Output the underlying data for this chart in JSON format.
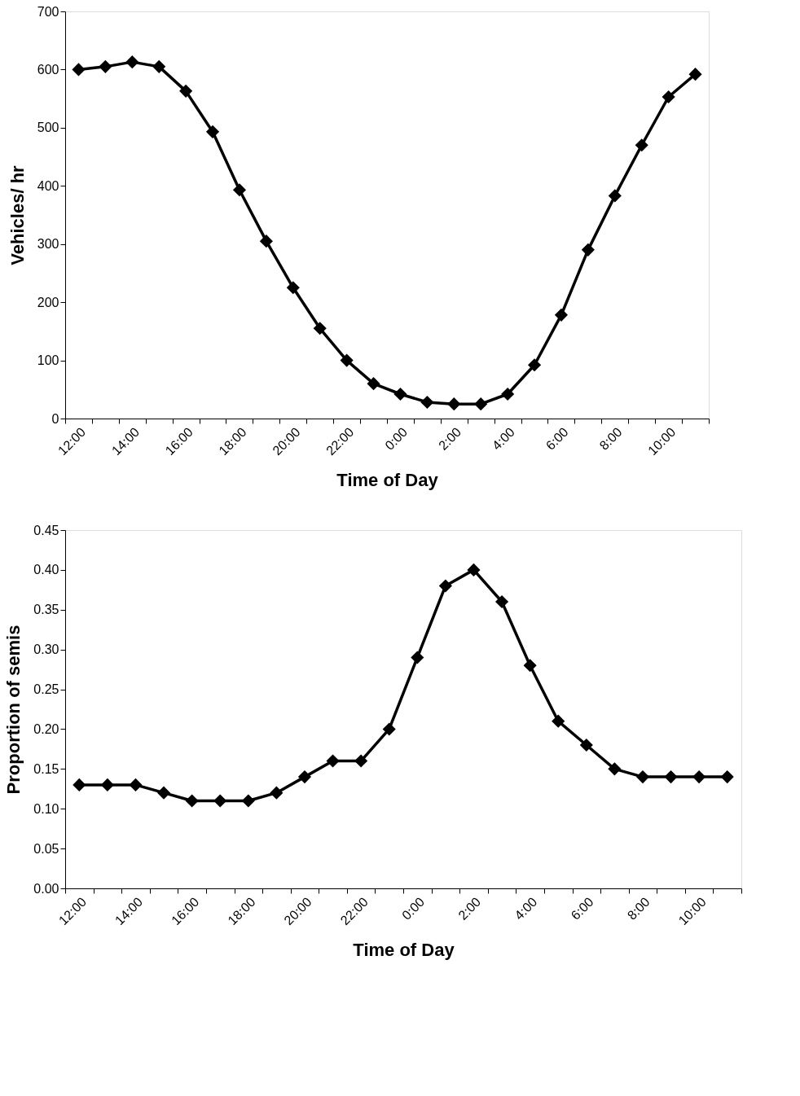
{
  "chart_data": [
    {
      "type": "line",
      "xlabel": "Time of Day",
      "ylabel": "Vehicles/ hr",
      "categories": [
        "12:00",
        null,
        "14:00",
        null,
        "16:00",
        null,
        "18:00",
        null,
        "20:00",
        null,
        "22:00",
        null,
        "0:00",
        null,
        "2:00",
        null,
        "4:00",
        null,
        "6:00",
        null,
        "8:00",
        null,
        "10:00",
        null
      ],
      "series": [
        {
          "color": "#000000",
          "values": [
            600,
            605,
            613,
            605,
            563,
            493,
            393,
            305,
            225,
            155,
            100,
            60,
            42,
            28,
            25,
            25,
            42,
            92,
            178,
            290,
            383,
            470,
            553,
            592
          ]
        }
      ],
      "ylim": [
        0,
        700
      ],
      "yticks": [
        0,
        100,
        200,
        300,
        400,
        500,
        600,
        700
      ],
      "grid": false,
      "marker": "diamond",
      "line_style": "solid"
    },
    {
      "type": "line",
      "xlabel": "Time of Day",
      "ylabel": "Proportion of semis",
      "categories": [
        "12:00",
        null,
        "14:00",
        null,
        "16:00",
        null,
        "18:00",
        null,
        "20:00",
        null,
        "22:00",
        null,
        "0:00",
        null,
        "2:00",
        null,
        "4:00",
        null,
        "6:00",
        null,
        "8:00",
        null,
        "10:00",
        null
      ],
      "series": [
        {
          "color": "#000000",
          "values": [
            0.13,
            0.13,
            0.13,
            0.12,
            0.11,
            0.11,
            0.11,
            0.12,
            0.14,
            0.16,
            0.16,
            0.2,
            0.29,
            0.38,
            0.4,
            0.36,
            0.28,
            0.21,
            0.18,
            0.15,
            0.14,
            0.14,
            0.14,
            0.14
          ]
        }
      ],
      "ylim": [
        0,
        0.45
      ],
      "yticks": [
        {
          "value": 0,
          "label": "0.00"
        },
        {
          "value": 0.05,
          "label": "0.05"
        },
        {
          "value": 0.1,
          "label": "0.10"
        },
        {
          "value": 0.15,
          "label": "0.15"
        },
        {
          "value": 0.2,
          "label": "0.20"
        },
        {
          "value": 0.25,
          "label": "0.25"
        },
        {
          "value": 0.3,
          "label": "0.30"
        },
        {
          "value": 0.35,
          "label": "0.35"
        },
        {
          "value": 0.4,
          "label": "0.40"
        },
        {
          "value": 0.45,
          "label": "0.45"
        }
      ],
      "grid": false,
      "marker": "diamond",
      "line_style": "solid"
    }
  ]
}
